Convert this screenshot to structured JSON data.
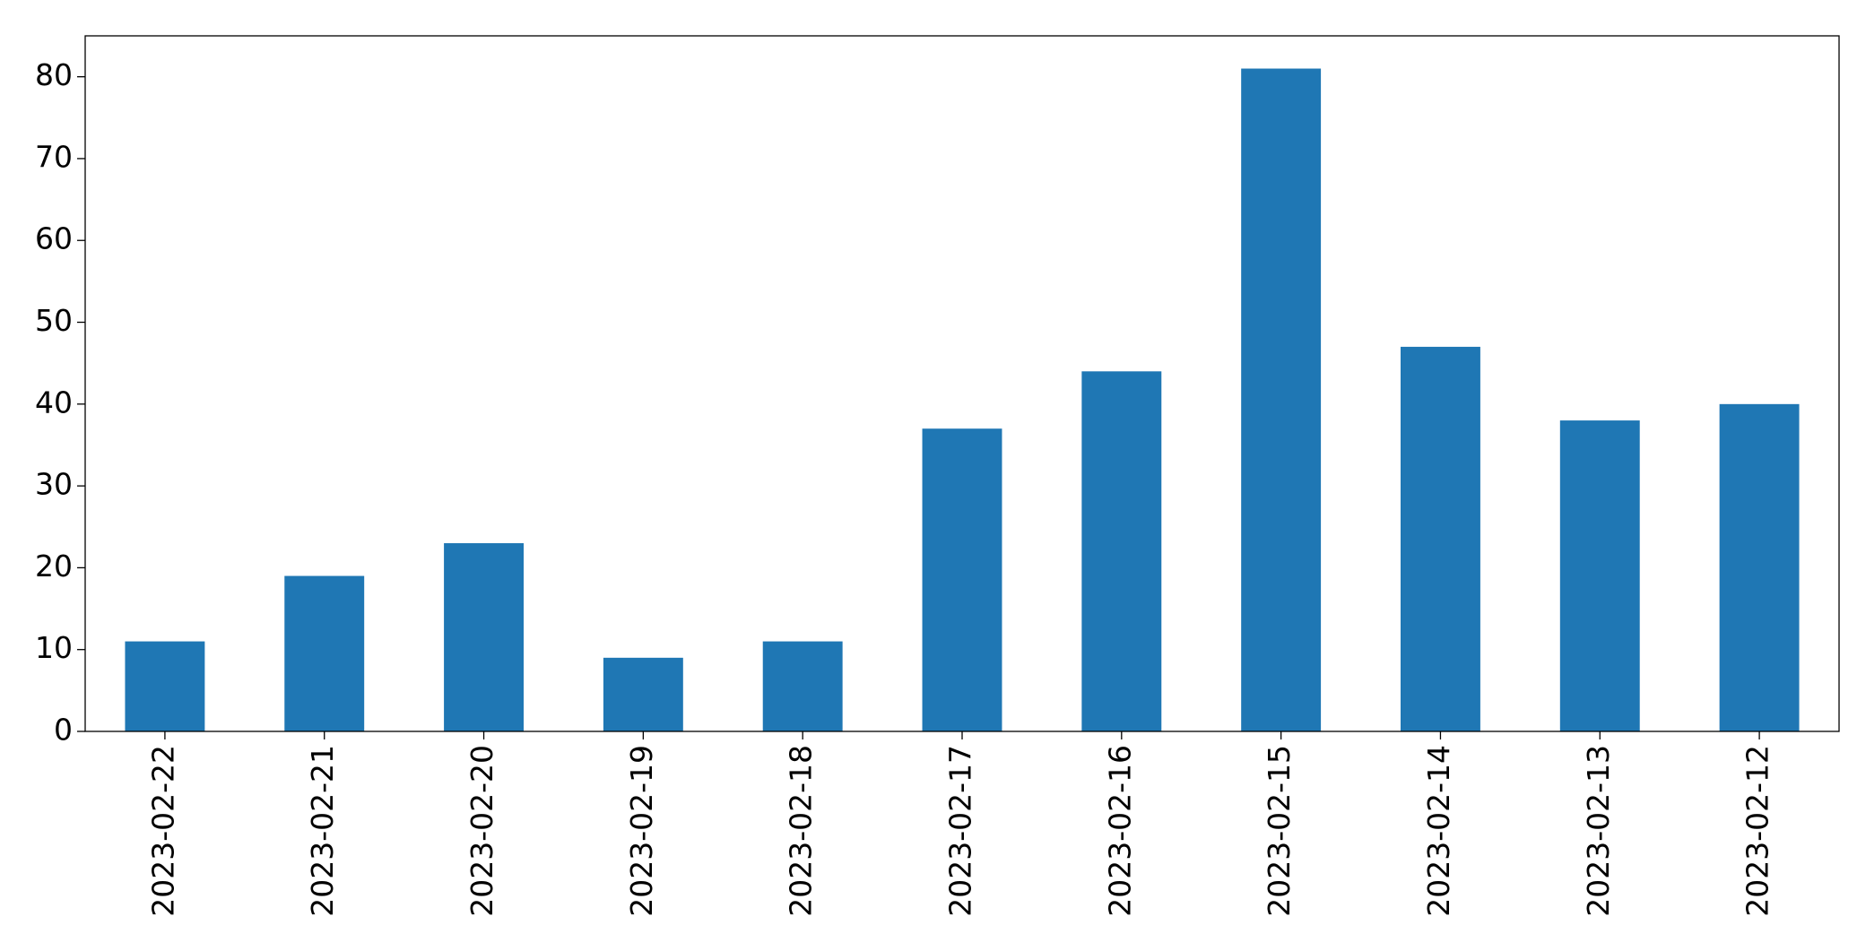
{
  "chart_data": {
    "type": "bar",
    "categories": [
      "2023-02-22",
      "2023-02-21",
      "2023-02-20",
      "2023-02-19",
      "2023-02-18",
      "2023-02-17",
      "2023-02-16",
      "2023-02-15",
      "2023-02-14",
      "2023-02-13",
      "2023-02-12"
    ],
    "values": [
      11,
      19,
      23,
      9,
      11,
      37,
      44,
      81,
      47,
      38,
      40
    ],
    "color": "#1f77b4",
    "ylim": [
      0,
      85
    ],
    "yticks": [
      0,
      10,
      20,
      30,
      40,
      50,
      60,
      70,
      80
    ],
    "grid": false
  }
}
